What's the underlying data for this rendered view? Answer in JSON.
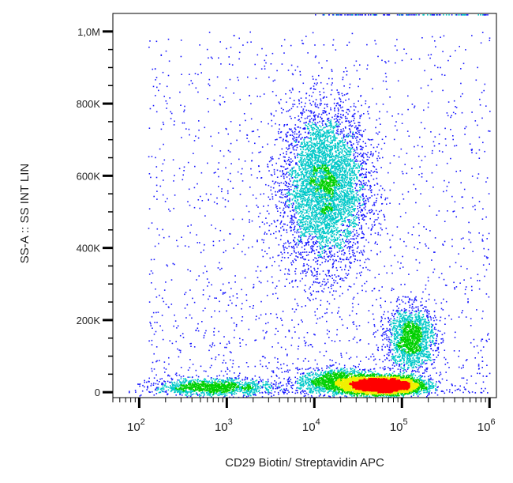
{
  "chart_data": {
    "type": "scatter",
    "subtype": "flow-cytometry-density-dot-plot",
    "xlabel": "CD29 Biotin/ Streptavidin APC",
    "ylabel": "SS-A :: SS INT LIN",
    "x_scale": "log",
    "y_scale": "linear",
    "xlim": [
      50,
      1200000
    ],
    "ylim": [
      -15000,
      1050000
    ],
    "x_ticks": [
      {
        "value": 100,
        "base": "10",
        "exp": "2"
      },
      {
        "value": 1000,
        "base": "10",
        "exp": "3"
      },
      {
        "value": 10000,
        "base": "10",
        "exp": "4"
      },
      {
        "value": 100000,
        "base": "10",
        "exp": "5"
      },
      {
        "value": 1000000,
        "base": "10",
        "exp": "6"
      }
    ],
    "y_ticks": [
      {
        "value": 0,
        "label": "0"
      },
      {
        "value": 200000,
        "label": "200K"
      },
      {
        "value": 400000,
        "label": "400K"
      },
      {
        "value": 600000,
        "label": "600K"
      },
      {
        "value": 800000,
        "label": "800K"
      },
      {
        "value": 1000000,
        "label": "1,0M"
      }
    ],
    "populations": [
      {
        "center": [
          13000,
          570000
        ],
        "spread_log10": 0.25,
        "spread_y": 110000,
        "relative_density": 0.3
      },
      {
        "center": [
          125000,
          150000
        ],
        "spread_log10": 0.14,
        "spread_y": 45000,
        "relative_density": 0.1
      },
      {
        "center": [
          60000,
          20000
        ],
        "spread_log10": 0.22,
        "spread_y": 12000,
        "relative_density": 0.35
      },
      {
        "center": [
          20000,
          30000
        ],
        "spread_log10": 0.25,
        "spread_y": 18000,
        "relative_density": 0.1
      },
      {
        "center": [
          700,
          15000
        ],
        "spread_log10": 0.35,
        "spread_y": 12000,
        "relative_density": 0.08
      }
    ],
    "color_scale": [
      "#1a1aff",
      "#00c8c8",
      "#00d000",
      "#f0f000",
      "#ff0000"
    ],
    "grid": false,
    "legend": "none"
  }
}
